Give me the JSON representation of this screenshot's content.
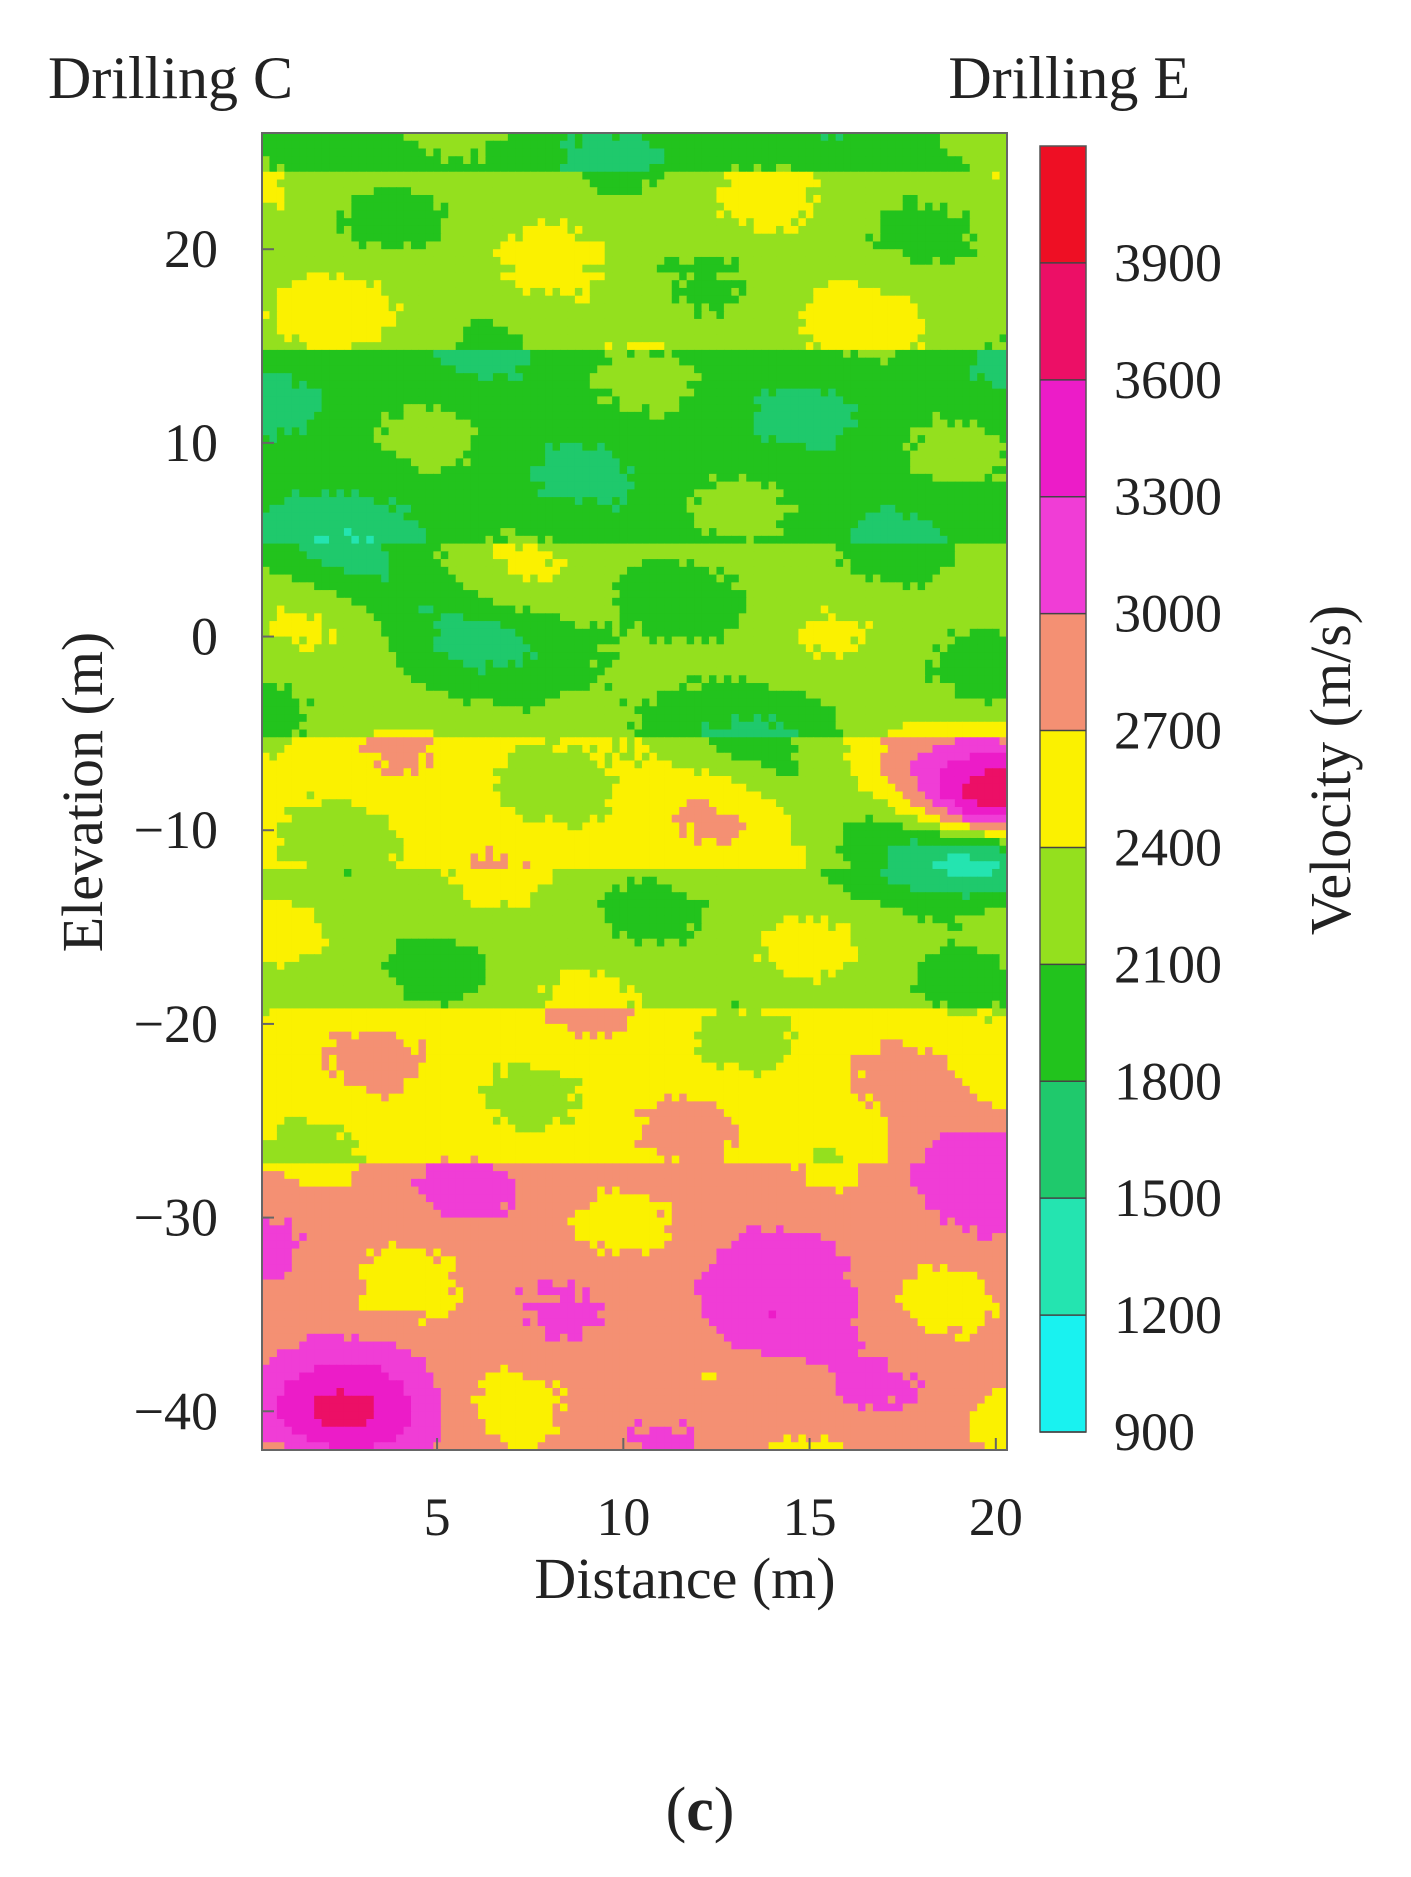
{
  "panel_label_parts": [
    "(",
    "c",
    ")"
  ],
  "chart_data": {
    "type": "heatmap",
    "subtype": "filled-contour tomogram",
    "annotations": {
      "left": "Drilling C",
      "right": "Drilling E"
    },
    "xlabel": "Distance (m)",
    "ylabel": "Elevation (m)",
    "xlim": [
      0.3,
      20.3
    ],
    "ylim": [
      -42,
      26
    ],
    "xticks": [
      5,
      10,
      15,
      20
    ],
    "yticks": [
      20,
      10,
      0,
      -10,
      -20,
      -30,
      -40
    ],
    "xtick_labels": [
      "5",
      "10",
      "15",
      "20"
    ],
    "ytick_labels": [
      "20",
      "10",
      "0",
      "−10",
      "−20",
      "−30",
      "−40"
    ],
    "colorbar": {
      "label": "Velocity (m/s)",
      "tick_values": [
        900,
        1200,
        1500,
        1800,
        2100,
        2400,
        2700,
        3000,
        3300,
        3600,
        3900
      ],
      "tick_labels": [
        "900",
        "1200",
        "1500",
        "1800",
        "2100",
        "2400",
        "2700",
        "3000",
        "3300",
        "3600",
        "3900"
      ],
      "range": [
        900,
        4200
      ],
      "levels": [
        {
          "min": 900,
          "max": 1200,
          "color": "#19f2f0"
        },
        {
          "min": 1200,
          "max": 1500,
          "color": "#24e4b0"
        },
        {
          "min": 1500,
          "max": 1800,
          "color": "#1fc96c"
        },
        {
          "min": 1800,
          "max": 2100,
          "color": "#22c31d"
        },
        {
          "min": 2100,
          "max": 2400,
          "color": "#94e01e"
        },
        {
          "min": 2400,
          "max": 2700,
          "color": "#fbf100"
        },
        {
          "min": 2700,
          "max": 3000,
          "color": "#f49073"
        },
        {
          "min": 3000,
          "max": 3300,
          "color": "#f03dd6"
        },
        {
          "min": 3300,
          "max": 3600,
          "color": "#ec1cc8"
        },
        {
          "min": 3600,
          "max": 3900,
          "color": "#ec0f66"
        },
        {
          "min": 3900,
          "max": 4200,
          "color": "#ee0f24"
        }
      ]
    },
    "velocity_layers": [
      {
        "elevation_top": 26,
        "elevation_bottom": 24,
        "velocity": 1950,
        "note": "fast surface band, right part"
      },
      {
        "elevation_top": 24,
        "elevation_bottom": 19,
        "velocity": 2250
      },
      {
        "elevation_top": 19,
        "elevation_bottom": 15,
        "velocity": 2300
      },
      {
        "elevation_top": 15,
        "elevation_bottom": 5,
        "velocity": 1950
      },
      {
        "elevation_top": 5,
        "elevation_bottom": -5,
        "velocity": 2200
      },
      {
        "elevation_top": -5,
        "elevation_bottom": -12,
        "velocity": 2500
      },
      {
        "elevation_top": -12,
        "elevation_bottom": -19,
        "velocity": 2250
      },
      {
        "elevation_top": -19,
        "elevation_bottom": -27,
        "velocity": 2550
      },
      {
        "elevation_top": -27,
        "elevation_bottom": -34,
        "velocity": 2850
      },
      {
        "elevation_top": -34,
        "elevation_bottom": -42,
        "velocity": 2800
      }
    ],
    "anomalies": [
      {
        "distance": 19.5,
        "elevation": -11,
        "velocity": 1000,
        "type": "low-velocity zone near Drilling E"
      },
      {
        "distance": 20.0,
        "elevation": -8,
        "velocity": 3800,
        "type": "high-velocity spot near Drilling E"
      },
      {
        "distance": 19.5,
        "elevation": -27,
        "velocity": 3200,
        "type": "high-velocity zone"
      },
      {
        "distance": 14.0,
        "elevation": -35,
        "velocity": 3300,
        "type": "high-velocity band"
      },
      {
        "distance": 2.5,
        "elevation": -40,
        "velocity": 3700,
        "type": "high-velocity zone at base near Drilling C"
      }
    ]
  }
}
